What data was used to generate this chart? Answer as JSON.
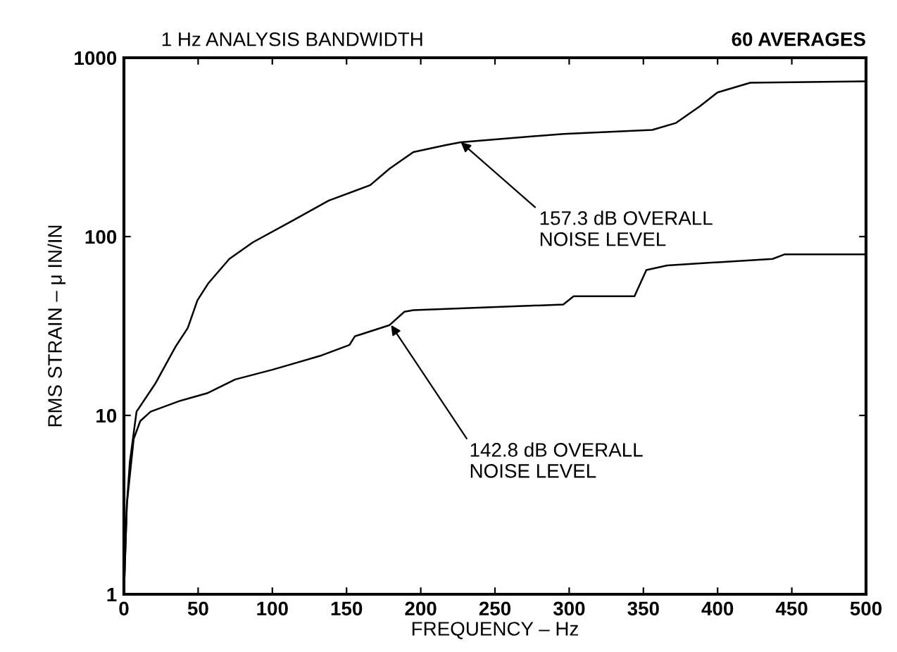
{
  "chart_data": {
    "type": "line",
    "title": "1 Hz ANALYSIS BANDWIDTH",
    "subtitle": "60 AVERAGES",
    "xlabel": "FREQUENCY – Hz",
    "ylabel": "RMS STRAIN – μ IN/IN",
    "series": [
      {
        "color": "#000000",
        "x": [
          0,
          2,
          4,
          8.5,
          21,
          35,
          43,
          49.5,
          57,
          71,
          87,
          113,
          138,
          166,
          179,
          195,
          217,
          227,
          296,
          356,
          372,
          388,
          400,
          422,
          500
        ],
        "values": [
          1,
          3.2,
          5.5,
          10.5,
          15,
          24.4,
          30.8,
          44,
          55,
          75,
          93,
          122,
          159,
          194,
          240,
          297,
          325,
          337,
          375,
          395,
          432,
          535,
          640,
          725,
          738
        ]
      },
      {
        "color": "#000000",
        "x": [
          0,
          2,
          6.6,
          11,
          18,
          37,
          56,
          75,
          100,
          132,
          152,
          155.6,
          179,
          189,
          195,
          296,
          303,
          344,
          352,
          366,
          437,
          445,
          500
        ],
        "values": [
          1,
          3.2,
          7.4,
          9.3,
          10.5,
          12,
          13.3,
          15.9,
          18,
          21.5,
          24.8,
          27.7,
          32,
          38,
          38.8,
          41.7,
          46.4,
          46.4,
          65,
          69,
          75,
          79.5,
          79.5
        ]
      }
    ],
    "annotations": [
      {
        "text": "157.3 dB OVERALL\nNOISE LEVEL",
        "x": 227,
        "y": 337
      },
      {
        "text": "142.8 dB OVERALL\nNOISE LEVEL",
        "x": 180,
        "y": 32
      }
    ],
    "log": "y",
    "xlim": [
      0,
      500
    ],
    "ylim": [
      1,
      1000
    ],
    "xticks": [
      0,
      50,
      100,
      150,
      200,
      250,
      300,
      350,
      400,
      450,
      500
    ],
    "yticks": [
      1,
      10,
      100,
      1000
    ],
    "grid": false,
    "legend": false
  }
}
